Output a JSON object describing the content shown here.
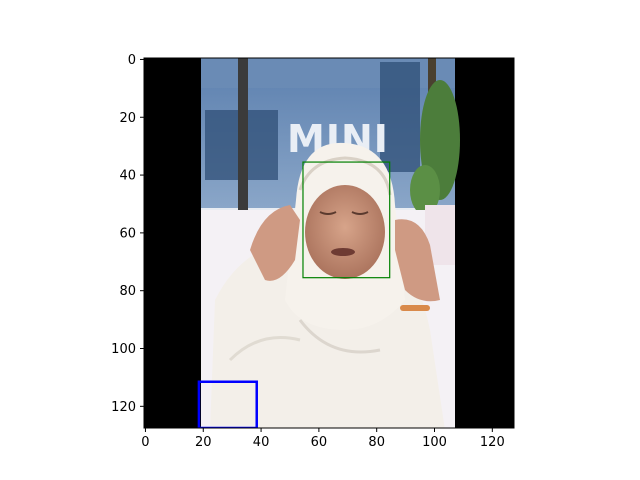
{
  "figure": {
    "x_ticks": [
      "0",
      "20",
      "40",
      "60",
      "80",
      "100",
      "120"
    ],
    "y_ticks": [
      "0",
      "20",
      "40",
      "60",
      "80",
      "100",
      "120"
    ],
    "x_tick_values": [
      0,
      20,
      40,
      60,
      80,
      100,
      120
    ],
    "y_tick_values": [
      0,
      20,
      40,
      60,
      80,
      100,
      120
    ],
    "xlim": [
      -0.5,
      127.5
    ],
    "ylim": [
      127.5,
      -0.5
    ],
    "image": {
      "content": "photo of a woman in a white headscarf touching her face, building with MINI signage behind",
      "signage_text": "MINI",
      "left_padding_end": 19.5,
      "right_padding_start": 107.5
    },
    "boxes": [
      {
        "label": "face-box",
        "color": "#008000",
        "x0": 54.5,
        "y0": 35.5,
        "x1": 84.5,
        "y1": 75.5
      },
      {
        "label": "hand-box",
        "color": "#0000ff",
        "x0": 18.5,
        "y0": 111.5,
        "x1": 38.5,
        "y1": 127.5
      }
    ]
  }
}
